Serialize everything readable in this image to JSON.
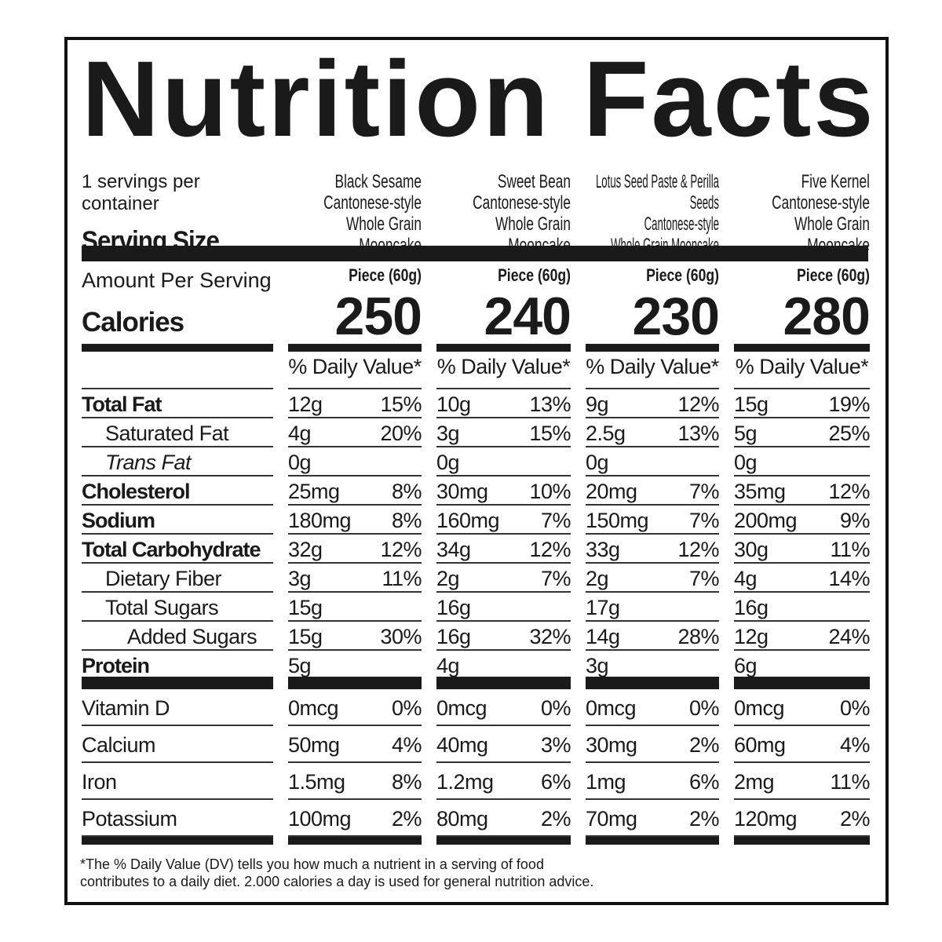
{
  "title": "Nutrition Facts",
  "servings_per_container": "1 servings per container",
  "serving_size_label": "Serving Size",
  "amount_per_serving": "Amount Per Serving",
  "calories_label": "Calories",
  "daily_value_header": "% Daily Value*",
  "products": [
    {
      "name_lines": [
        "Black Sesame",
        "Cantonese-style",
        "Whole Grain Mooncake"
      ],
      "serving": "Piece (60g)",
      "calories": "250"
    },
    {
      "name_lines": [
        "Sweet Bean",
        "Cantonese-style",
        "Whole Grain Mooncake"
      ],
      "serving": "Piece (60g)",
      "calories": "240"
    },
    {
      "name_lines": [
        "Lotus Seed Paste & Perilla Seeds",
        "Cantonese-style",
        "Whole Grain Mooncake"
      ],
      "serving": "Piece (60g)",
      "calories": "230"
    },
    {
      "name_lines": [
        "Five Kernel",
        "Cantonese-style",
        "Whole Grain Mooncake"
      ],
      "serving": "Piece (60g)",
      "calories": "280"
    }
  ],
  "nutrients": [
    {
      "label": "Total Fat",
      "style": "b",
      "values": [
        [
          "12g",
          "15%"
        ],
        [
          "10g",
          "13%"
        ],
        [
          "9g",
          "12%"
        ],
        [
          "15g",
          "19%"
        ]
      ]
    },
    {
      "label": "Saturated Fat",
      "style": "i1",
      "values": [
        [
          "4g",
          "20%"
        ],
        [
          "3g",
          "15%"
        ],
        [
          "2.5g",
          "13%"
        ],
        [
          "5g",
          "25%"
        ]
      ]
    },
    {
      "label": "Trans Fat",
      "style": "i1 it",
      "values": [
        [
          "0g",
          ""
        ],
        [
          "0g",
          ""
        ],
        [
          "0g",
          ""
        ],
        [
          "0g",
          ""
        ]
      ]
    },
    {
      "label": "Cholesterol",
      "style": "b",
      "values": [
        [
          "25mg",
          "8%"
        ],
        [
          "30mg",
          "10%"
        ],
        [
          "20mg",
          "7%"
        ],
        [
          "35mg",
          "12%"
        ]
      ]
    },
    {
      "label": "Sodium",
      "style": "b",
      "values": [
        [
          "180mg",
          "8%"
        ],
        [
          "160mg",
          "7%"
        ],
        [
          "150mg",
          "7%"
        ],
        [
          "200mg",
          "9%"
        ]
      ]
    },
    {
      "label": "Total Carbohydrate",
      "style": "b",
      "values": [
        [
          "32g",
          "12%"
        ],
        [
          "34g",
          "12%"
        ],
        [
          "33g",
          "12%"
        ],
        [
          "30g",
          "11%"
        ]
      ]
    },
    {
      "label": "Dietary Fiber",
      "style": "i1",
      "values": [
        [
          "3g",
          "11%"
        ],
        [
          "2g",
          "7%"
        ],
        [
          "2g",
          "7%"
        ],
        [
          "4g",
          "14%"
        ]
      ]
    },
    {
      "label": "Total Sugars",
      "style": "i1",
      "values": [
        [
          "15g",
          ""
        ],
        [
          "16g",
          ""
        ],
        [
          "17g",
          ""
        ],
        [
          "16g",
          ""
        ]
      ]
    },
    {
      "label": "Added Sugars",
      "style": "i2",
      "values": [
        [
          "15g",
          "30%"
        ],
        [
          "16g",
          "32%"
        ],
        [
          "14g",
          "28%"
        ],
        [
          "12g",
          "24%"
        ]
      ]
    },
    {
      "label": "Protein",
      "style": "b",
      "values": [
        [
          "5g",
          ""
        ],
        [
          "4g",
          ""
        ],
        [
          "3g",
          ""
        ],
        [
          "6g",
          ""
        ]
      ]
    }
  ],
  "vitamins": [
    {
      "label": "Vitamin D",
      "values": [
        [
          "0mcg",
          "0%"
        ],
        [
          "0mcg",
          "0%"
        ],
        [
          "0mcg",
          "0%"
        ],
        [
          "0mcg",
          "0%"
        ]
      ]
    },
    {
      "label": "Calcium",
      "values": [
        [
          "50mg",
          "4%"
        ],
        [
          "40mg",
          "3%"
        ],
        [
          "30mg",
          "2%"
        ],
        [
          "60mg",
          "4%"
        ]
      ]
    },
    {
      "label": "Iron",
      "values": [
        [
          "1.5mg",
          "8%"
        ],
        [
          "1.2mg",
          "6%"
        ],
        [
          "1mg",
          "6%"
        ],
        [
          "2mg",
          "11%"
        ]
      ]
    },
    {
      "label": "Potassium",
      "values": [
        [
          "100mg",
          "2%"
        ],
        [
          "80mg",
          "2%"
        ],
        [
          "70mg",
          "2%"
        ],
        [
          "120mg",
          "2%"
        ]
      ]
    }
  ],
  "footnote_lines": [
    "*The % Daily Value (DV) tells you how much a nutrient in a serving of food",
    "contributes to a daily diet. 2.000 calories a day is used for general nutrition advice."
  ]
}
